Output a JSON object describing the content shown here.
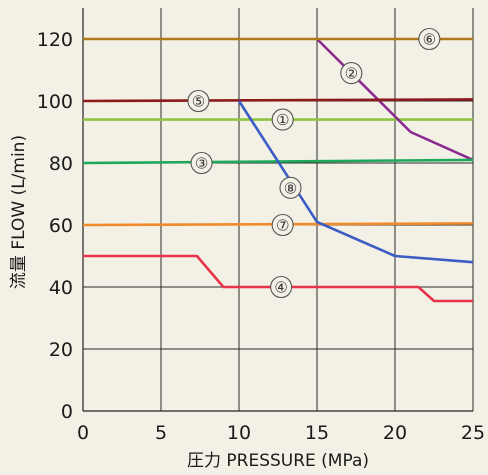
{
  "chart_data": {
    "type": "line",
    "xlabel": "圧力 PRESSURE (MPa)",
    "ylabel": "流量 FLOW (L/min)",
    "xlim": [
      0,
      25
    ],
    "ylim": [
      0,
      130
    ],
    "xticks": [
      "0",
      "5",
      "10",
      "15",
      "20",
      "25"
    ],
    "yticks": [
      "0",
      "20",
      "40",
      "60",
      "80",
      "100",
      "120"
    ],
    "grid": true,
    "series": [
      {
        "name": "①",
        "color": "#8cc63f",
        "x": [
          0,
          25
        ],
        "y": [
          94,
          94
        ],
        "marker_at": [
          12.8,
          94
        ]
      },
      {
        "name": "②",
        "color": "#8b2a8f",
        "x": [
          15,
          21,
          25
        ],
        "y": [
          120,
          90,
          81
        ],
        "marker_at": [
          17.2,
          109
        ]
      },
      {
        "name": "③",
        "color": "#1ea85a",
        "x": [
          0,
          25
        ],
        "y": [
          80,
          81
        ],
        "marker_at": [
          7.6,
          80
        ]
      },
      {
        "name": "④",
        "color": "#e8344a",
        "x": [
          0,
          7.3,
          9,
          21.5,
          22.5,
          25
        ],
        "y": [
          50,
          50,
          40,
          40,
          35.5,
          35.5
        ],
        "marker_at": [
          12.7,
          40
        ]
      },
      {
        "name": "⑤",
        "color": "#8b1a1a",
        "x": [
          0,
          25
        ],
        "y": [
          100,
          100.5
        ],
        "marker_at": [
          7.4,
          100
        ]
      },
      {
        "name": "⑥",
        "color": "#b07a1a",
        "x": [
          0,
          25
        ],
        "y": [
          120,
          120
        ],
        "marker_at": [
          22.2,
          120
        ]
      },
      {
        "name": "⑦",
        "color": "#f08a2a",
        "x": [
          0,
          25
        ],
        "y": [
          60,
          60.5
        ],
        "marker_at": [
          12.8,
          60
        ]
      },
      {
        "name": "⑧",
        "color": "#3b5cc4",
        "x": [
          10,
          15,
          20,
          25
        ],
        "y": [
          100,
          61,
          50,
          48
        ],
        "marker_at": [
          13.3,
          72
        ]
      }
    ]
  }
}
